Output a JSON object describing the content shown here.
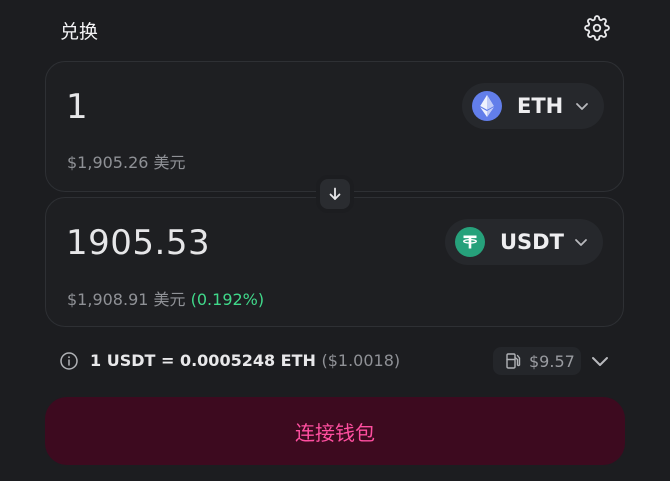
{
  "header": {
    "title": "兑换"
  },
  "sell": {
    "amount": "1",
    "fiat_value": "$1,905.26 美元",
    "token_symbol": "ETH"
  },
  "buy": {
    "amount": "1905.53",
    "fiat_value": "$1,908.91 美元",
    "price_impact": "(0.192%)",
    "token_symbol": "USDT"
  },
  "rate": {
    "text": "1 USDT = 0.0005248 ETH",
    "usd": "($1.0018)"
  },
  "gas": {
    "value": "$9.57"
  },
  "actions": {
    "connect_label": "连接钱包"
  },
  "colors": {
    "background": "#1c1d20",
    "accent_pink": "#ff4fa0",
    "connect_bg": "#3d0a1f",
    "positive_green": "#40d88a",
    "eth_blue": "#627eea",
    "usdt_green": "#26a17b"
  },
  "icons": [
    "gear-icon",
    "eth-logo-icon",
    "usdt-logo-icon",
    "chevron-down-icon",
    "arrow-down-icon",
    "info-icon",
    "gas-pump-icon"
  ]
}
